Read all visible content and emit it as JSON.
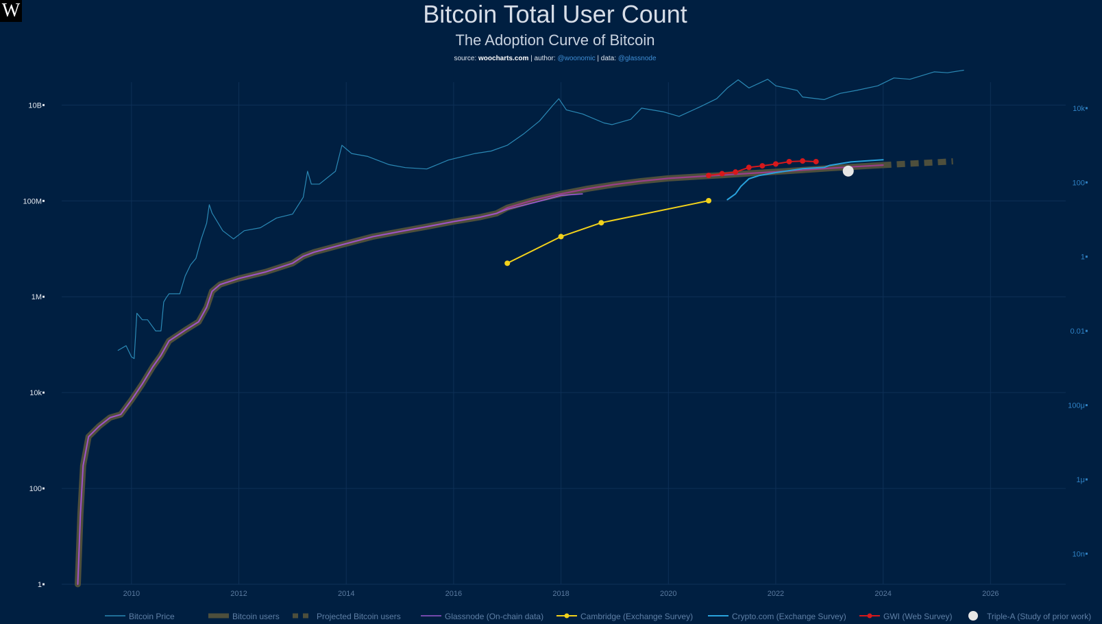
{
  "logo": {
    "glyph": "W",
    "icon": "woocharts-logo-icon"
  },
  "header": {
    "title": "Bitcoin Total User Count",
    "subtitle": "The Adoption Curve of Bitcoin",
    "source_prefix": "source: ",
    "source_site": "woocharts.com",
    "author_prefix": " | author: ",
    "author": "@woonomic",
    "data_prefix": " | data: ",
    "data_source": "@glassnode"
  },
  "colors": {
    "background": "#001f41",
    "price": "#2b8ab6",
    "bitcoin_users": "#4e4f3c",
    "users_inner": "#9a3f8a",
    "glassnode": "#9b59d0",
    "cambridge": "#f2d21b",
    "cryptocom": "#29a3dd",
    "gwi": "#d7191c",
    "triplea": "#e6e6e6"
  },
  "chart_data": {
    "type": "line",
    "x_axis": {
      "label": "",
      "range": [
        2008.7,
        2027.4
      ],
      "ticks": [
        "2010",
        "2012",
        "2014",
        "2016",
        "2018",
        "2020",
        "2022",
        "2024",
        "2026"
      ]
    },
    "y_axis_left": {
      "label": "",
      "scale": "log",
      "range": [
        1,
        30000000000
      ],
      "ticks": [
        "1",
        "100",
        "10k",
        "1M",
        "100M",
        "10B"
      ]
    },
    "y_axis_right": {
      "label": "",
      "scale": "log",
      "range": [
        1.5e-09,
        50000
      ],
      "ticks": [
        "10n",
        "1μ",
        "100μ",
        "0.01",
        "1",
        "100",
        "10k"
      ]
    },
    "grid": true,
    "legend_position": "bottom",
    "series": [
      {
        "name": "Bitcoin Price",
        "axis": "right",
        "style": "thin-line",
        "x": [
          2009.75,
          2009.9,
          2010.0,
          2010.05,
          2010.1,
          2010.2,
          2010.3,
          2010.45,
          2010.55,
          2010.6,
          2010.65,
          2010.7,
          2010.9,
          2011.0,
          2011.1,
          2011.2,
          2011.3,
          2011.4,
          2011.45,
          2011.5,
          2011.7,
          2011.9,
          2012.1,
          2012.4,
          2012.7,
          2013.0,
          2013.2,
          2013.28,
          2013.35,
          2013.5,
          2013.8,
          2013.92,
          2014.1,
          2014.4,
          2014.8,
          2015.1,
          2015.5,
          2015.9,
          2016.4,
          2016.7,
          2017.0,
          2017.3,
          2017.6,
          2017.85,
          2017.96,
          2018.1,
          2018.4,
          2018.8,
          2018.95,
          2019.3,
          2019.5,
          2019.9,
          2020.2,
          2020.6,
          2020.9,
          2021.1,
          2021.3,
          2021.5,
          2021.85,
          2022.0,
          2022.4,
          2022.5,
          2022.9,
          2023.2,
          2023.5,
          2023.9,
          2024.2,
          2024.5,
          2024.95,
          2025.2,
          2025.5
        ],
        "y": [
          0.003,
          0.004,
          0.002,
          0.0018,
          0.03,
          0.02,
          0.02,
          0.01,
          0.01,
          0.06,
          0.08,
          0.1,
          0.1,
          0.3,
          0.6,
          0.9,
          3.0,
          8.0,
          25.0,
          15.0,
          5.0,
          3.0,
          5.0,
          6.0,
          11.0,
          14.0,
          40.0,
          200.0,
          90.0,
          90.0,
          200.0,
          1000.0,
          600.0,
          500.0,
          300.0,
          250.0,
          230.0,
          400.0,
          600.0,
          700.0,
          1000.0,
          2000.0,
          4500.0,
          12000.0,
          18000.0,
          9000.0,
          7000.0,
          4000.0,
          3600.0,
          5000.0,
          10000.0,
          8000.0,
          6000.0,
          11000.0,
          18000.0,
          35000.0,
          58000.0,
          35000.0,
          60000.0,
          40000.0,
          30000.0,
          20000.0,
          17000.0,
          25000.0,
          30000.0,
          40000.0,
          65000.0,
          60000.0,
          95000.0,
          90000.0,
          105000.0
        ]
      },
      {
        "name": "Bitcoin users",
        "axis": "left",
        "style": "thick-band",
        "x": [
          2009.0,
          2009.05,
          2009.1,
          2009.2,
          2009.4,
          2009.6,
          2009.8,
          2010.0,
          2010.2,
          2010.4,
          2010.55,
          2010.7,
          2011.0,
          2011.25,
          2011.4,
          2011.5,
          2011.65,
          2012.0,
          2012.5,
          2013.0,
          2013.2,
          2013.4,
          2013.9,
          2014.5,
          2015.0,
          2015.5,
          2016.0,
          2016.5,
          2016.8,
          2017.0,
          2017.5,
          2018.0,
          2018.5,
          2019.0,
          2019.5,
          2020.0,
          2020.5,
          2021.0,
          2021.5,
          2022.0,
          2022.5,
          2023.0,
          2023.5,
          2024.0
        ],
        "y": [
          1,
          30,
          300,
          1200,
          2000,
          3000,
          3500,
          7000,
          15000,
          35000,
          60000,
          120000,
          200000,
          300000,
          600000,
          1300000,
          1800000,
          2400000,
          3300000,
          5000000,
          7000000,
          8500000,
          12000000,
          18000000,
          23000000,
          29000000,
          37000000,
          46000000,
          55000000,
          72000000,
          105000000,
          140000000,
          180000000,
          220000000,
          260000000,
          295000000,
          320000000,
          345000000,
          375000000,
          405000000,
          440000000,
          480000000,
          520000000,
          560000000
        ]
      },
      {
        "name": "Projected Bitcoin users",
        "axis": "left",
        "style": "thick-dash",
        "x": [
          2024.0,
          2024.5,
          2025.0,
          2025.3
        ],
        "y": [
          560000000,
          600000000,
          640000000,
          670000000
        ]
      },
      {
        "name": "Glassnode (On-chain data)",
        "axis": "left",
        "style": "thin-line",
        "x": [
          2009.0,
          2009.05,
          2009.1,
          2009.2,
          2009.4,
          2009.6,
          2009.8,
          2010.0,
          2010.2,
          2010.4,
          2010.55,
          2010.7,
          2011.0,
          2011.25,
          2011.4,
          2011.5,
          2011.65,
          2012.0,
          2012.5,
          2013.0,
          2013.2,
          2013.4,
          2013.9,
          2014.5,
          2015.0,
          2015.5,
          2016.0,
          2016.5,
          2016.8,
          2017.0,
          2017.5,
          2018.0,
          2018.4
        ],
        "y": [
          1,
          30,
          300,
          1200,
          2000,
          3000,
          3500,
          7000,
          15000,
          35000,
          60000,
          120000,
          200000,
          300000,
          600000,
          1300000,
          1800000,
          2400000,
          3300000,
          5000000,
          7000000,
          8500000,
          12000000,
          18000000,
          23000000,
          29000000,
          37000000,
          46000000,
          55000000,
          67000000,
          92000000,
          130000000,
          140000000
        ]
      },
      {
        "name": "Cambridge (Exchange Survey)",
        "axis": "left",
        "style": "line-markers",
        "x": [
          2017.0,
          2018.0,
          2018.75,
          2020.75
        ],
        "y": [
          5000000,
          18000000,
          35000000,
          101000000
        ]
      },
      {
        "name": "Crypto.com (Exchange Survey)",
        "axis": "left",
        "style": "thin-line",
        "x": [
          2021.1,
          2021.25,
          2021.35,
          2021.5,
          2021.7,
          2022.0,
          2022.5,
          2022.9,
          2023.0,
          2023.4,
          2023.8,
          2024.0
        ],
        "y": [
          106000000,
          140000000,
          200000000,
          290000000,
          340000000,
          390000000,
          470000000,
          500000000,
          550000000,
          650000000,
          700000000,
          720000000
        ]
      },
      {
        "name": "GWI (Web Survey)",
        "axis": "left",
        "style": "line-markers",
        "x": [
          2020.75,
          2021.0,
          2021.25,
          2021.5,
          2021.75,
          2022.0,
          2022.25,
          2022.5,
          2022.75
        ],
        "y": [
          340000000,
          370000000,
          400000000,
          500000000,
          540000000,
          590000000,
          660000000,
          680000000,
          660000000
        ]
      },
      {
        "name": "Triple-A (Study of prior work)",
        "axis": "left",
        "style": "marker",
        "x": [
          2023.35
        ],
        "y": [
          420000000
        ]
      }
    ]
  }
}
